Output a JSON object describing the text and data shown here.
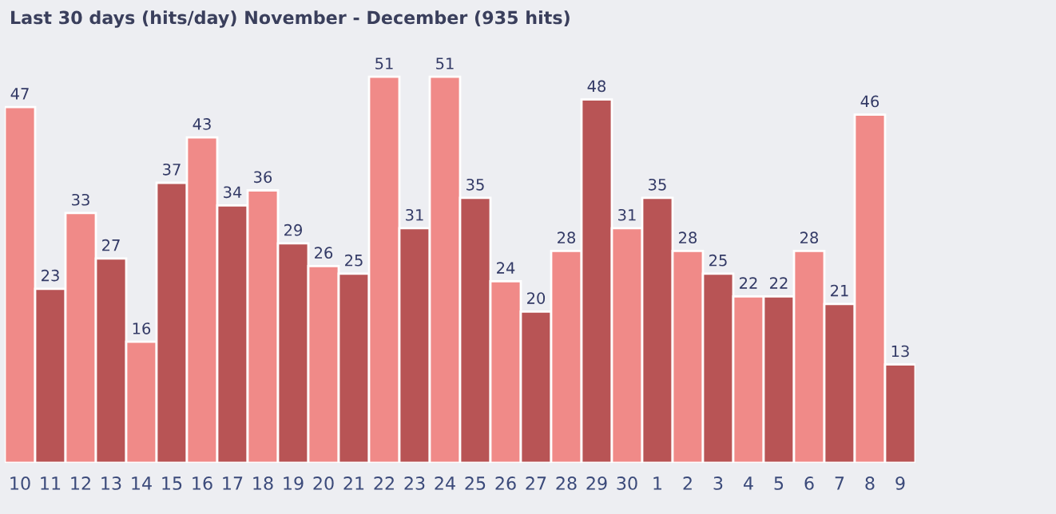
{
  "chart_data": {
    "type": "bar",
    "title": "Last 30 days (hits/day) November - December (935 hits)",
    "categories": [
      "10",
      "11",
      "12",
      "13",
      "14",
      "15",
      "16",
      "17",
      "18",
      "19",
      "20",
      "21",
      "22",
      "23",
      "24",
      "25",
      "26",
      "27",
      "28",
      "29",
      "30",
      "1",
      "2",
      "3",
      "4",
      "5",
      "6",
      "7",
      "8",
      "9"
    ],
    "values": [
      47,
      23,
      33,
      27,
      16,
      37,
      43,
      34,
      36,
      29,
      26,
      25,
      51,
      31,
      51,
      35,
      24,
      20,
      28,
      48,
      31,
      35,
      28,
      25,
      22,
      22,
      28,
      21,
      46,
      13
    ],
    "colors": [
      "#f08a88",
      "#b85455",
      "#f08a88",
      "#b85455",
      "#f08a88",
      "#b85455",
      "#f08a88",
      "#b85455",
      "#f08a88",
      "#b85455",
      "#f08a88",
      "#b85455",
      "#f08a88",
      "#b85455",
      "#f08a88",
      "#b85455",
      "#f08a88",
      "#b85455",
      "#f08a88",
      "#b85455",
      "#f08a88",
      "#b85455",
      "#f08a88",
      "#b85455",
      "#f08a88",
      "#b85455",
      "#f08a88",
      "#b85455",
      "#f08a88",
      "#b85455"
    ],
    "tick_labels": "x",
    "data_labels": true,
    "grid": false,
    "legend": false
  }
}
